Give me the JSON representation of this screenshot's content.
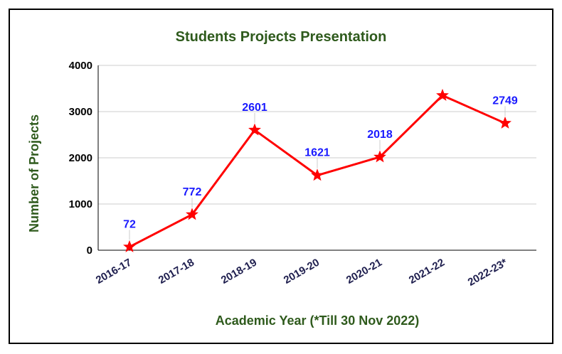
{
  "chart_data": {
    "type": "line",
    "title": "Students Projects Presentation",
    "xlabel": "Academic Year (*Till 30 Nov 2022)",
    "ylabel": "Number of Projects",
    "categories": [
      "2016-17",
      "2017-18",
      "2018-19",
      "2019-20",
      "2020-21",
      "2021-22",
      "2022-23*"
    ],
    "series": [
      {
        "values": [
          72,
          772,
          2601,
          1621,
          2018,
          3350,
          2749
        ],
        "data_labels": [
          "72",
          "772",
          "2601",
          "1621",
          "2018",
          "",
          "2749"
        ]
      }
    ],
    "ylim": [
      0,
      4000
    ],
    "yticks": [
      "0",
      "1000",
      "2000",
      "3000",
      "4000"
    ],
    "grid": true,
    "legend": "none",
    "colors": {
      "line": "#ff0000",
      "marker": "#ff0000",
      "data_label": "#1a1aff",
      "title": "#2e5a1c",
      "x_tick": "#1f1f4f",
      "grid": "#cccccc"
    }
  }
}
